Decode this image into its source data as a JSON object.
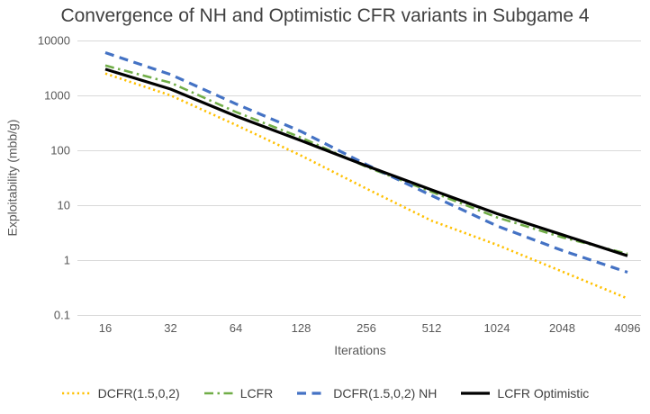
{
  "chart_data": {
    "type": "line",
    "title": "Convergence of NH and Optimistic CFR variants in Subgame 4",
    "xlabel": "Iterations",
    "ylabel": "Exploitability (mbb/g)",
    "x_scale": "log2",
    "y_scale": "log10",
    "xlim": [
      16,
      4096
    ],
    "ylim": [
      0.1,
      10000
    ],
    "x_ticks": [
      16,
      32,
      64,
      128,
      256,
      512,
      1024,
      2048,
      4096
    ],
    "y_ticks": [
      10000,
      1000,
      100,
      10,
      1,
      0.1
    ],
    "y_tick_labels": [
      "10000",
      "1000",
      "100",
      "10",
      "1",
      "0.1"
    ],
    "grid": "horizontal",
    "gridline_color": "#d9d9d9",
    "background_color": "#ffffff",
    "legend_position": "bottom",
    "x": [
      16,
      32,
      64,
      128,
      256,
      512,
      1024,
      2048,
      4096
    ],
    "series": [
      {
        "name": "DCFR(1.5,0,2)",
        "color": "#ffc000",
        "style": "dotted",
        "values": [
          2500,
          1000,
          290,
          80,
          20,
          5.2,
          1.9,
          0.62,
          0.2
        ]
      },
      {
        "name": "LCFR",
        "color": "#70ad47",
        "style": "dash-dot",
        "values": [
          3500,
          1700,
          500,
          170,
          50,
          17.5,
          6,
          2.6,
          1.3
        ]
      },
      {
        "name": "DCFR(1.5,0,2) NH",
        "color": "#4472c4",
        "style": "dashed",
        "values": [
          6000,
          2400,
          700,
          220,
          55,
          15,
          4.2,
          1.5,
          0.6
        ]
      },
      {
        "name": "LCFR Optimistic",
        "color": "#000000",
        "style": "solid",
        "values": [
          3000,
          1300,
          420,
          150,
          52,
          19,
          7,
          2.9,
          1.2
        ]
      }
    ]
  }
}
